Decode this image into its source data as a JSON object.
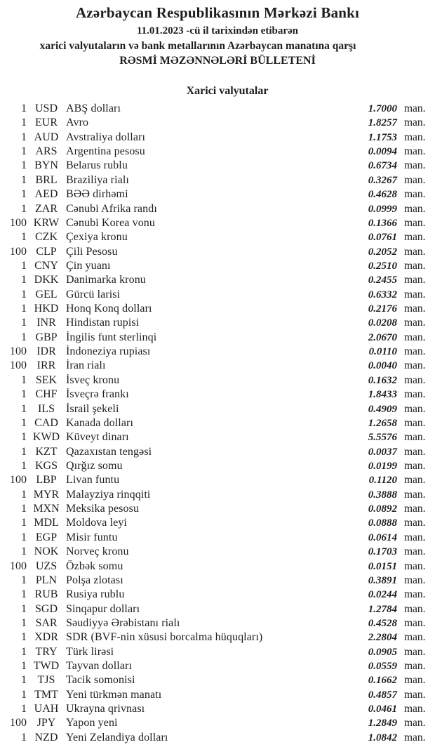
{
  "colors": {
    "text": "#1e1e1e",
    "background": "#ffffff"
  },
  "header": {
    "title": "Azərbaycan Respublikasının Mərkəzi Bankı",
    "date_line": "11.01.2023 -cü il tarixindən etibarən",
    "subject_line": "xarici valyutaların və bank metallarının Azərbaycan manatına qarşı",
    "bulletin_line": "RƏSMİ MƏZƏNNƏLƏRİ BÜLLETENİ",
    "section_title": "Xarici valyutalar"
  },
  "rates_table": {
    "unit_label": "man.",
    "rows": [
      {
        "qty": "1",
        "code": "USD",
        "name": "ABŞ dolları",
        "rate": "1.7000"
      },
      {
        "qty": "1",
        "code": "EUR",
        "name": "Avro",
        "rate": "1.8257"
      },
      {
        "qty": "1",
        "code": "AUD",
        "name": "Avstraliya dolları",
        "rate": "1.1753"
      },
      {
        "qty": "1",
        "code": "ARS",
        "name": "Argentina pesosu",
        "rate": "0.0094"
      },
      {
        "qty": "1",
        "code": "BYN",
        "name": "Belarus rublu",
        "rate": "0.6734"
      },
      {
        "qty": "1",
        "code": "BRL",
        "name": "Braziliya rialı",
        "rate": "0.3267"
      },
      {
        "qty": "1",
        "code": "AED",
        "name": "BƏƏ dirhəmi",
        "rate": "0.4628"
      },
      {
        "qty": "1",
        "code": "ZAR",
        "name": "Cənubi Afrika randı",
        "rate": "0.0999"
      },
      {
        "qty": "100",
        "code": "KRW",
        "name": "Cənubi Korea vonu",
        "rate": "0.1366"
      },
      {
        "qty": "1",
        "code": "CZK",
        "name": "Çexiya kronu",
        "rate": "0.0761"
      },
      {
        "qty": "100",
        "code": "CLP",
        "name": "Çili Pesosu",
        "rate": "0.2052"
      },
      {
        "qty": "1",
        "code": "CNY",
        "name": "Çin yuanı",
        "rate": "0.2510"
      },
      {
        "qty": "1",
        "code": "DKK",
        "name": "Danimarka kronu",
        "rate": "0.2455"
      },
      {
        "qty": "1",
        "code": "GEL",
        "name": "Gürcü larisi",
        "rate": "0.6332"
      },
      {
        "qty": "1",
        "code": "HKD",
        "name": "Honq Konq dolları",
        "rate": "0.2176"
      },
      {
        "qty": "1",
        "code": "INR",
        "name": "Hindistan rupisi",
        "rate": "0.0208"
      },
      {
        "qty": "1",
        "code": "GBP",
        "name": "İngilis funt sterlinqi",
        "rate": "2.0670"
      },
      {
        "qty": "100",
        "code": "IDR",
        "name": "İndoneziya rupiası",
        "rate": "0.0110"
      },
      {
        "qty": "100",
        "code": "IRR",
        "name": "İran rialı",
        "rate": "0.0040"
      },
      {
        "qty": "1",
        "code": "SEK",
        "name": "İsveç kronu",
        "rate": "0.1632"
      },
      {
        "qty": "1",
        "code": "CHF",
        "name": "İsveçrə frankı",
        "rate": "1.8433"
      },
      {
        "qty": "1",
        "code": "ILS",
        "name": "İsrail şekeli",
        "rate": "0.4909"
      },
      {
        "qty": "1",
        "code": "CAD",
        "name": "Kanada dolları",
        "rate": "1.2658"
      },
      {
        "qty": "1",
        "code": "KWD",
        "name": "Küveyt dinarı",
        "rate": "5.5576"
      },
      {
        "qty": "1",
        "code": "KZT",
        "name": "Qazaxıstan tengəsi",
        "rate": "0.0037"
      },
      {
        "qty": "1",
        "code": "KGS",
        "name": "Qırğız somu",
        "rate": "0.0199"
      },
      {
        "qty": "100",
        "code": "LBP",
        "name": "Livan funtu",
        "rate": "0.1120"
      },
      {
        "qty": "1",
        "code": "MYR",
        "name": "Malayziya rinqqiti",
        "rate": "0.3888"
      },
      {
        "qty": "1",
        "code": "MXN",
        "name": "Meksika pesosu",
        "rate": "0.0892"
      },
      {
        "qty": "1",
        "code": "MDL",
        "name": "Moldova leyi",
        "rate": "0.0888"
      },
      {
        "qty": "1",
        "code": "EGP",
        "name": "Misir funtu",
        "rate": "0.0614"
      },
      {
        "qty": "1",
        "code": "NOK",
        "name": "Norveç kronu",
        "rate": "0.1703"
      },
      {
        "qty": "100",
        "code": "UZS",
        "name": "Özbək somu",
        "rate": "0.0151"
      },
      {
        "qty": "1",
        "code": "PLN",
        "name": "Polşa zlotası",
        "rate": "0.3891"
      },
      {
        "qty": "1",
        "code": "RUB",
        "name": "Rusiya rublu",
        "rate": "0.0244"
      },
      {
        "qty": "1",
        "code": "SGD",
        "name": "Sinqapur dolları",
        "rate": "1.2784"
      },
      {
        "qty": "1",
        "code": "SAR",
        "name": "Səudiyyə Ərəbistanı rialı",
        "rate": "0.4528"
      },
      {
        "qty": "1",
        "code": "XDR",
        "name": "SDR (BVF-nin xüsusi borcalma hüquqları)",
        "rate": "2.2804"
      },
      {
        "qty": "1",
        "code": "TRY",
        "name": "Türk lirəsi",
        "rate": "0.0905"
      },
      {
        "qty": "1",
        "code": "TWD",
        "name": "Tayvan dolları",
        "rate": "0.0559"
      },
      {
        "qty": "1",
        "code": "TJS",
        "name": "Tacik somonisi",
        "rate": "0.1662"
      },
      {
        "qty": "1",
        "code": "TMT",
        "name": "Yeni türkmən manatı",
        "rate": "0.4857"
      },
      {
        "qty": "1",
        "code": "UAH",
        "name": "Ukrayna qrivnası",
        "rate": "0.0461"
      },
      {
        "qty": "100",
        "code": "JPY",
        "name": "Yapon yeni",
        "rate": "1.2849"
      },
      {
        "qty": "1",
        "code": "NZD",
        "name": "Yeni Zelandiya dolları",
        "rate": "1.0842"
      }
    ]
  }
}
